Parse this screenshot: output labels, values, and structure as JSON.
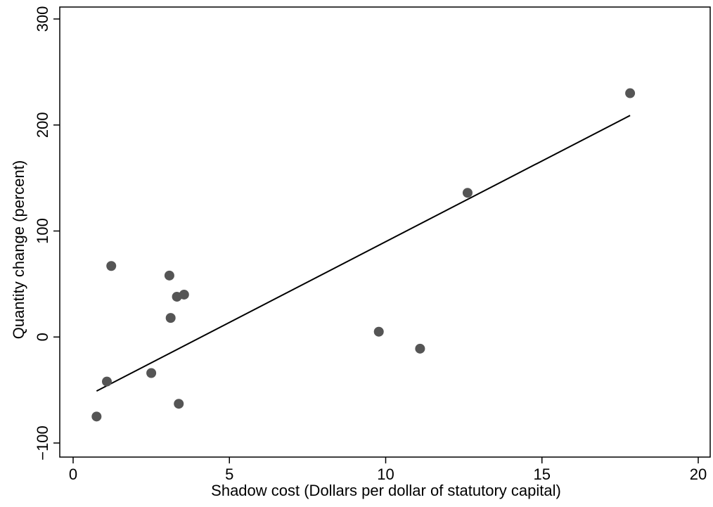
{
  "chart_data": {
    "type": "scatter",
    "title": "",
    "xlabel": "Shadow cost (Dollars per dollar of statutory capital)",
    "ylabel": "Quantity change (percent)",
    "xlim": [
      0,
      20
    ],
    "ylim": [
      -100,
      300
    ],
    "x_ticks": [
      0,
      5,
      10,
      15,
      20
    ],
    "x_tick_labels": [
      "0",
      "5",
      "10",
      "15",
      "20"
    ],
    "y_ticks": [
      -100,
      0,
      100,
      200,
      300
    ],
    "y_tick_labels": [
      "−100",
      "0",
      "100",
      "200",
      "300"
    ],
    "grid": false,
    "legend": "none",
    "colors": {
      "points": "#555555",
      "line": "#000000",
      "axes": "#000000"
    },
    "series": [
      {
        "type": "scatter",
        "points": [
          {
            "x": 0.75,
            "y": -75
          },
          {
            "x": 1.08,
            "y": -42
          },
          {
            "x": 1.22,
            "y": 67
          },
          {
            "x": 2.5,
            "y": -34
          },
          {
            "x": 3.08,
            "y": 58
          },
          {
            "x": 3.12,
            "y": 18
          },
          {
            "x": 3.32,
            "y": 38
          },
          {
            "x": 3.38,
            "y": -63
          },
          {
            "x": 3.55,
            "y": 40
          },
          {
            "x": 9.78,
            "y": 5
          },
          {
            "x": 11.1,
            "y": -11
          },
          {
            "x": 12.62,
            "y": 136
          },
          {
            "x": 17.82,
            "y": 230
          }
        ]
      },
      {
        "type": "line",
        "points": [
          {
            "x": 0.75,
            "y": -51
          },
          {
            "x": 17.82,
            "y": 209
          }
        ]
      }
    ]
  }
}
